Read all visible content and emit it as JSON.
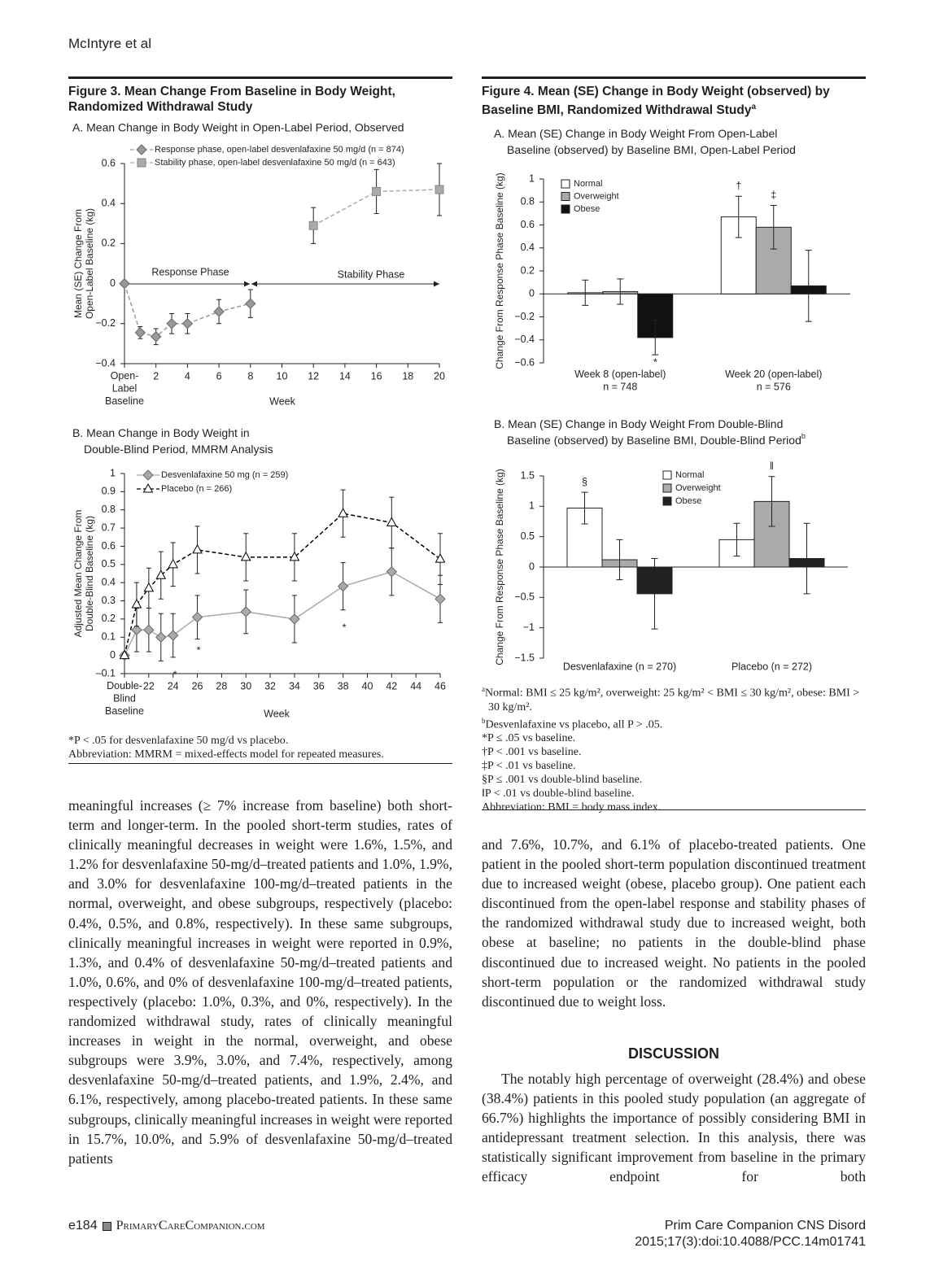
{
  "header": {
    "running_head": "McIntyre et al"
  },
  "figure3": {
    "title": "Figure 3. Mean Change From Baseline in Body Weight,\nRandomized Withdrawal Study",
    "footnotes": [
      "*P < .05 for desvenlafaxine 50 mg/d vs placebo.",
      "Abbreviation: MMRM = mixed-effects model for repeated measures."
    ]
  },
  "figure4": {
    "title": "Figure 4. Mean (SE) Change in Body Weight (observed) by\nBaseline BMI, Randomized Withdrawal Study",
    "title_sup": "a",
    "footnotes": [
      {
        "mark": "a",
        "text": "Normal: BMI ≤ 25 kg/m², overweight: 25 kg/m² < BMI ≤ 30 kg/m², obese: BMI > 30 kg/m²."
      },
      {
        "mark": "b",
        "text": "Desvenlafaxine vs placebo, all P > .05."
      },
      "*P ≤ .05 vs baseline.",
      "†P < .001 vs baseline.",
      "‡P < .01 vs baseline.",
      "§P ≤ .001 vs double-blind baseline.",
      "‖P < .01 vs double-blind baseline.",
      "Abbreviation: BMI = body mass index."
    ]
  },
  "chart_data": [
    {
      "type": "line",
      "subtitle": "A. Mean Change in Body Weight in Open-Label Period, Observed",
      "ylabel": "Mean (SE) Change From\nOpen-Label Baseline (kg)",
      "xlabel": "Week",
      "xlim": [
        0,
        20
      ],
      "xticks": [
        {
          "value": 0,
          "label": "Open-\nLabel\nBaseline"
        },
        2,
        4,
        6,
        8,
        10,
        12,
        14,
        16,
        18,
        20
      ],
      "ylim": [
        -0.4,
        0.6
      ],
      "yticks": [
        {
          "value": -0.4,
          "label": "−0.4"
        },
        {
          "value": -0.2,
          "label": "−0.2"
        },
        0,
        0.2,
        0.4,
        0.6
      ],
      "annotations": [
        "Response Phase",
        "Stability Phase"
      ],
      "series": [
        {
          "name": "Response phase, open-label desvenlafaxine 50 mg/d (n = 874)",
          "color": "#999999",
          "marker": "diamond",
          "line_style": "dashed",
          "x": [
            0,
            1,
            2,
            3,
            4,
            6,
            8
          ],
          "values": [
            0,
            -0.245,
            -0.265,
            -0.2,
            -0.2,
            -0.14,
            -0.1
          ],
          "errors": [
            null,
            0.03,
            0.04,
            0.05,
            0.05,
            0.06,
            0.07
          ]
        },
        {
          "name": "Stability phase, open-label desvenlafaxine 50 mg/d (n = 643)",
          "color": "#aaaaaa",
          "marker": "square",
          "line_style": "dashed",
          "x": [
            12,
            16,
            20
          ],
          "values": [
            0.29,
            0.46,
            0.47
          ],
          "errors": [
            0.09,
            0.11,
            0.13
          ]
        }
      ]
    },
    {
      "type": "line",
      "subtitle": "B. Mean Change in Body Weight in\nDouble-Blind Period, MMRM Analysis",
      "ylabel": "Adjusted Mean Change From\nDouble-Blind Baseline (kg)",
      "xlabel": "Week",
      "xlim": [
        20,
        46
      ],
      "xticks": [
        {
          "value": 20,
          "label": "Double-\nBlind\nBaseline"
        },
        22,
        24,
        26,
        28,
        30,
        32,
        34,
        36,
        38,
        40,
        42,
        44,
        46
      ],
      "ylim": [
        -0.1,
        1
      ],
      "yticks": [
        {
          "value": -0.1,
          "label": "–0.1"
        },
        0,
        0.1,
        0.2,
        0.3,
        0.4,
        0.5,
        0.6,
        0.7,
        0.8,
        0.9,
        1
      ],
      "annotations": [
        "*",
        "*",
        "*"
      ],
      "series": [
        {
          "name": "Desvenlafaxine 50 mg (n = 259)",
          "color": "#aaaaaa",
          "marker": "diamond",
          "line_style": "solid",
          "x": [
            20,
            21,
            22,
            23,
            24,
            26,
            30,
            34,
            38,
            42,
            46
          ],
          "values": [
            0,
            0.14,
            0.14,
            0.1,
            0.11,
            0.21,
            0.24,
            0.2,
            0.38,
            0.46,
            0.31
          ],
          "errors": [
            null,
            0.12,
            0.12,
            0.13,
            0.12,
            0.12,
            0.12,
            0.13,
            0.13,
            0.13,
            0.13
          ]
        },
        {
          "name": "Placebo (n = 266)",
          "color": "#000000",
          "marker": "triangle",
          "line_style": "dashed",
          "x": [
            20,
            21,
            22,
            23,
            24,
            26,
            30,
            34,
            38,
            42,
            46
          ],
          "values": [
            0,
            0.28,
            0.37,
            0.44,
            0.5,
            0.58,
            0.54,
            0.54,
            0.78,
            0.73,
            0.53
          ],
          "errors": [
            null,
            0.12,
            0.11,
            0.13,
            0.12,
            0.13,
            0.13,
            0.13,
            0.13,
            0.14,
            0.14
          ]
        }
      ]
    },
    {
      "type": "bar",
      "subtitle": "A. Mean (SE) Change in Body Weight From Open-Label\nBaseline (observed) by Baseline BMI, Open-Label Period",
      "ylabel": "Change From Response Phase Baseline (kg)",
      "categories": [
        "Week 8 (open-label)\nn = 748",
        "Week 20 (open-label)\nn = 576"
      ],
      "ylim": [
        -0.6,
        1
      ],
      "yticks": [
        {
          "value": -0.6,
          "label": "−0.6"
        },
        {
          "value": -0.4,
          "label": "−0.4"
        },
        {
          "value": -0.2,
          "label": "−0.2"
        },
        0,
        0.2,
        0.4,
        0.6,
        0.8,
        1
      ],
      "series": [
        {
          "name": "Normal",
          "color": "#ffffff",
          "values": [
            0.01,
            0.67
          ],
          "errors": [
            0.11,
            0.18
          ],
          "notes": [
            null,
            "†"
          ]
        },
        {
          "name": "Overweight",
          "color": "#aaaaaa",
          "values": [
            0.02,
            0.58
          ],
          "errors": [
            0.11,
            0.19
          ],
          "notes": [
            null,
            "‡"
          ]
        },
        {
          "name": "Obese",
          "color": "#111111",
          "values": [
            -0.38,
            0.07
          ],
          "errors": [
            0.15,
            0.31
          ],
          "notes": [
            "*",
            null
          ]
        }
      ]
    },
    {
      "type": "bar",
      "subtitle": "B. Mean (SE) Change in Body Weight From Double-Blind\nBaseline (observed) by Baseline BMI, Double-Blind Period",
      "subtitle_sup": "b",
      "ylabel": "Change From Response Phase Baseline (kg)",
      "categories": [
        "Desvenlafaxine (n = 270)",
        "Placebo (n = 272)"
      ],
      "ylim": [
        -1.5,
        1.5
      ],
      "yticks": [
        {
          "value": -1.5,
          "label": "−1.5"
        },
        {
          "value": -1,
          "label": "−1"
        },
        {
          "value": -0.5,
          "label": "−0.5"
        },
        0,
        0.5,
        1,
        1.5
      ],
      "series": [
        {
          "name": "Normal",
          "color": "#ffffff",
          "values": [
            0.97,
            0.45
          ],
          "errors": [
            0.26,
            0.27
          ],
          "notes": [
            "§",
            null
          ]
        },
        {
          "name": "Overweight",
          "color": "#aaaaaa",
          "values": [
            0.12,
            1.08
          ],
          "errors": [
            0.33,
            0.41
          ],
          "notes": [
            null,
            "‖"
          ]
        },
        {
          "name": "Obese",
          "color": "#222222",
          "values": [
            -0.44,
            0.14
          ],
          "errors": [
            0.58,
            0.58
          ],
          "notes": [
            null,
            null
          ]
        }
      ]
    }
  ],
  "body": {
    "left_column": "meaningful increases (≥ 7% increase from baseline) both short-term and longer-term. In the pooled short-term studies, rates of clinically meaningful decreases in weight were 1.6%, 1.5%, and 1.2% for desvenlafaxine 50-mg/d–treated patients and 1.0%, 1.9%, and 3.0% for desvenlafaxine 100-mg/d–treated patients in the normal, overweight, and obese subgroups, respectively (placebo: 0.4%, 0.5%, and 0.8%, respectively). In these same subgroups, clinically meaningful increases in weight were reported in 0.9%, 1.3%, and 0.4% of desvenlafaxine 50-mg/d–treated patients and 1.0%, 0.6%, and 0% of desvenlafaxine 100-mg/d–treated patients, respectively (placebo: 1.0%, 0.3%, and 0%, respectively). In the randomized withdrawal study, rates of clinically meaningful increases in weight in the normal, overweight, and obese subgroups were 3.9%, 3.0%, and 7.4%, respectively, among desvenlafaxine 50-mg/d–treated patients, and 1.9%, 2.4%, and 6.1%, respectively, among placebo-treated patients. In these same subgroups, clinically meaningful increases in weight were reported in 15.7%, 10.0%, and 5.9% of desvenlafaxine 50-mg/d–treated patients",
    "right_column": "and 7.6%, 10.7%, and 6.1% of placebo-treated patients. One patient in the pooled short-term population discontinued treatment due to increased weight (obese, placebo group). One patient each discontinued from the open-label response and stability phases of the randomized withdrawal study due to increased weight, both obese at baseline; no patients in the double-blind phase discontinued due to increased weight. No patients in the pooled short-term population or the randomized withdrawal study discontinued due to weight loss.",
    "heading": "DISCUSSION",
    "discussion": "The notably high percentage of overweight (28.4%) and obese (38.4%) patients in this pooled study population (an aggregate of 66.7%) highlights the importance of possibly considering BMI in antidepressant treatment selection. In this analysis, there was statistically significant improvement from baseline in the primary efficacy endpoint for both"
  },
  "footer": {
    "page": "e184",
    "site": "PrimaryCareCompanion.com",
    "journal": "Prim Care Companion CNS Disord",
    "citation": "2015;17(3):doi:10.4088/PCC.14m01741"
  }
}
